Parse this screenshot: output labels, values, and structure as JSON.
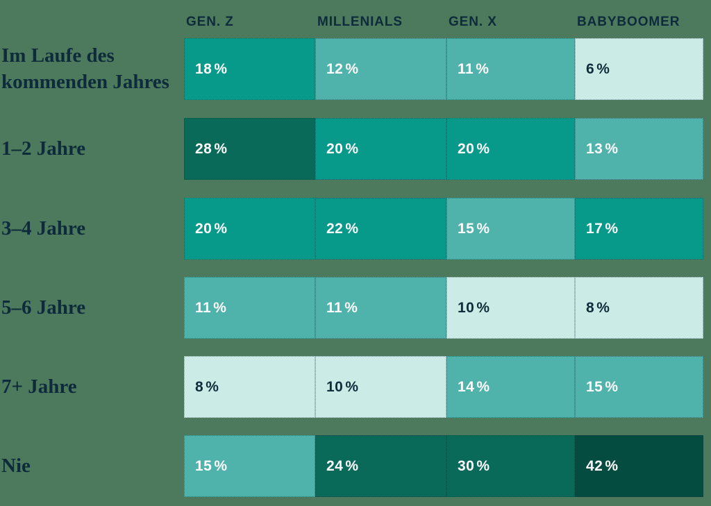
{
  "page": {
    "background_color": "#4d7a5d",
    "label_color": "#0d2b3a"
  },
  "chart_data": {
    "type": "heatmap",
    "title": "",
    "unit": "%",
    "columns": [
      "GEN. Z",
      "MILLENIALS",
      "GEN. X",
      "BABYBOOMER"
    ],
    "rows": [
      "Im Laufe des kommenden Jahres",
      "1–2 Jahre",
      "3–4 Jahre",
      "5–6 Jahre",
      "7+ Jahre",
      "Nie"
    ],
    "values": [
      [
        18,
        12,
        11,
        6
      ],
      [
        28,
        20,
        20,
        13
      ],
      [
        20,
        22,
        15,
        17
      ],
      [
        11,
        11,
        10,
        8
      ],
      [
        8,
        10,
        14,
        15
      ],
      [
        15,
        24,
        30,
        42
      ]
    ],
    "color_scale": [
      {
        "max": 10,
        "bg": "#cbebe6",
        "text": "#0e2c3a"
      },
      {
        "max": 15,
        "bg": "#4fb3ab",
        "text": "#ffffff"
      },
      {
        "max": 22,
        "bg": "#079a8b",
        "text": "#ffffff"
      },
      {
        "max": 39,
        "bg": "#0a6a5a",
        "text": "#ffffff"
      },
      {
        "max": 100,
        "bg": "#054c40",
        "text": "#ffffff"
      }
    ],
    "legend_position": "none",
    "grid": false
  }
}
